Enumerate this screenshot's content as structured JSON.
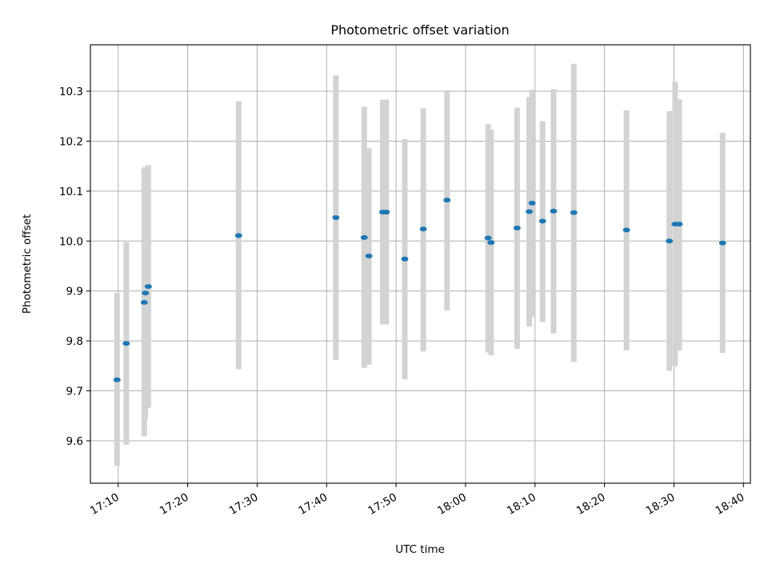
{
  "chart_data": {
    "type": "scatter",
    "title": "Photometric offset variation",
    "xlabel": "UTC time",
    "ylabel": "Photometric offset",
    "xlim": [
      "17:06",
      "18:41"
    ],
    "ylim": [
      9.515,
      10.393
    ],
    "x_ticks": [
      "17:10",
      "17:20",
      "17:30",
      "17:40",
      "17:50",
      "18:00",
      "18:10",
      "18:20",
      "18:30",
      "18:40"
    ],
    "y_ticks": [
      "9.6",
      "9.7",
      "9.8",
      "9.9",
      "10.0",
      "10.1",
      "10.2",
      "10.3"
    ],
    "grid": true,
    "marker_color": "#1f77b4",
    "errorbar_color": "#d3d3d3",
    "points": [
      {
        "time": "17:09:50",
        "y": 9.722,
        "ylow": 9.55,
        "yhigh": 9.896
      },
      {
        "time": "17:11:10",
        "y": 9.795,
        "ylow": 9.592,
        "yhigh": 9.998
      },
      {
        "time": "17:13:45",
        "y": 9.877,
        "ylow": 9.609,
        "yhigh": 10.145
      },
      {
        "time": "17:13:55",
        "y": 9.896,
        "ylow": 9.644,
        "yhigh": 10.148
      },
      {
        "time": "17:14:20",
        "y": 9.909,
        "ylow": 9.666,
        "yhigh": 10.152
      },
      {
        "time": "17:27:20",
        "y": 10.011,
        "ylow": 9.743,
        "yhigh": 10.28
      },
      {
        "time": "17:41:20",
        "y": 10.047,
        "ylow": 9.762,
        "yhigh": 10.332
      },
      {
        "time": "17:45:25",
        "y": 10.007,
        "ylow": 9.746,
        "yhigh": 10.269
      },
      {
        "time": "17:46:05",
        "y": 9.97,
        "ylow": 9.752,
        "yhigh": 10.186
      },
      {
        "time": "17:48:05",
        "y": 10.058,
        "ylow": 9.833,
        "yhigh": 10.283
      },
      {
        "time": "17:48:35",
        "y": 10.058,
        "ylow": 9.833,
        "yhigh": 10.283
      },
      {
        "time": "17:51:15",
        "y": 9.964,
        "ylow": 9.723,
        "yhigh": 10.204
      },
      {
        "time": "17:53:55",
        "y": 10.024,
        "ylow": 9.779,
        "yhigh": 10.266
      },
      {
        "time": "17:57:20",
        "y": 10.082,
        "ylow": 9.861,
        "yhigh": 10.302
      },
      {
        "time": "18:03:15",
        "y": 10.006,
        "ylow": 9.777,
        "yhigh": 10.234
      },
      {
        "time": "18:03:40",
        "y": 9.997,
        "ylow": 9.771,
        "yhigh": 10.223
      },
      {
        "time": "18:07:25",
        "y": 10.026,
        "ylow": 9.784,
        "yhigh": 10.267
      },
      {
        "time": "18:09:10",
        "y": 10.059,
        "ylow": 9.829,
        "yhigh": 10.288
      },
      {
        "time": "18:09:35",
        "y": 10.076,
        "ylow": 9.848,
        "yhigh": 10.303
      },
      {
        "time": "18:11:05",
        "y": 10.04,
        "ylow": 9.838,
        "yhigh": 10.24
      },
      {
        "time": "18:12:40",
        "y": 10.06,
        "ylow": 9.815,
        "yhigh": 10.304
      },
      {
        "time": "18:15:35",
        "y": 10.057,
        "ylow": 9.758,
        "yhigh": 10.355
      },
      {
        "time": "18:23:10",
        "y": 10.022,
        "ylow": 9.781,
        "yhigh": 10.262
      },
      {
        "time": "18:29:20",
        "y": 10.0,
        "ylow": 9.74,
        "yhigh": 10.26
      },
      {
        "time": "18:30:10",
        "y": 10.034,
        "ylow": 9.749,
        "yhigh": 10.319
      },
      {
        "time": "18:30:45",
        "y": 10.034,
        "ylow": 9.781,
        "yhigh": 10.284
      },
      {
        "time": "18:37:00",
        "y": 9.996,
        "ylow": 9.776,
        "yhigh": 10.217
      }
    ]
  }
}
